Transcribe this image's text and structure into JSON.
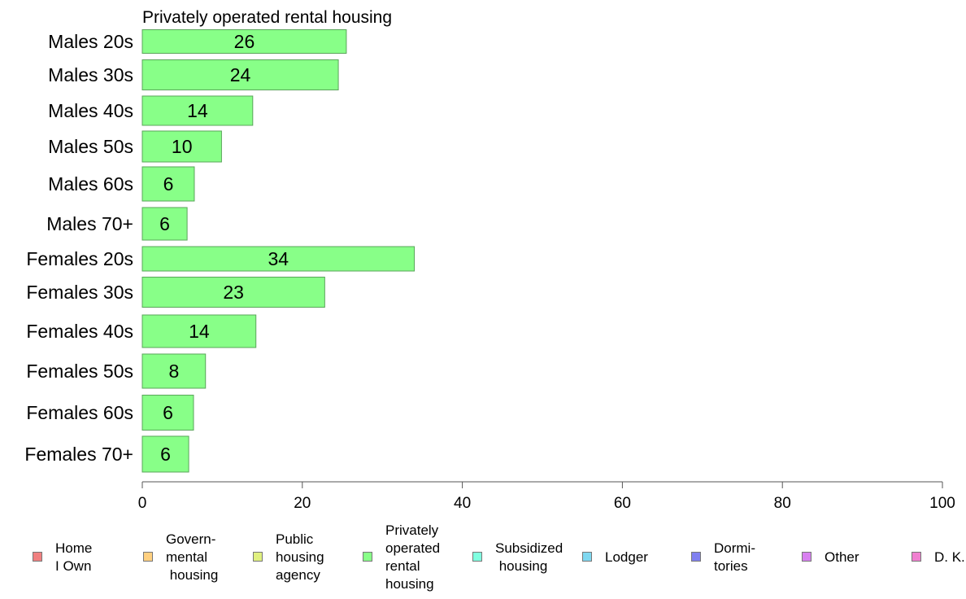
{
  "chart_data": {
    "type": "bar",
    "orientation": "horizontal",
    "title": "Privately operated rental housing",
    "categories": [
      "Males 20s",
      "Males 30s",
      "Males 40s",
      "Males 50s",
      "Males 60s",
      "Males 70+",
      "Females 20s",
      "Females 30s",
      "Females 40s",
      "Females 50s",
      "Females 60s",
      "Females 70+"
    ],
    "values": [
      25.5,
      24.5,
      13.8,
      9.9,
      6.5,
      5.6,
      34.0,
      22.8,
      14.2,
      7.9,
      6.4,
      5.8
    ],
    "value_labels": [
      "26",
      "24",
      "14",
      "10",
      "6",
      "6",
      "34",
      "23",
      "14",
      "8",
      "6",
      "6"
    ],
    "xlim": [
      0,
      100
    ],
    "xticks": [
      "0",
      "20",
      "40",
      "60",
      "80",
      "100"
    ],
    "xlabel": "",
    "ylabel": "",
    "grid": false,
    "bar_color": "#88ff88",
    "legend_position": "bottom",
    "legend": [
      {
        "label": "Home\nI Own",
        "color": "#f08080"
      },
      {
        "label": "Govern-\nmental\n housing",
        "color": "#ffd080"
      },
      {
        "label": "Public\nhousing\nagency",
        "color": "#e0f080"
      },
      {
        "label": "Privately\noperated\nrental\nhousing",
        "color": "#88ff88"
      },
      {
        "label": "Subsidized\n housing",
        "color": "#80ffe0"
      },
      {
        "label": "Lodger",
        "color": "#80d8f0"
      },
      {
        "label": "Dormi-\ntories",
        "color": "#8080f0"
      },
      {
        "label": "Other",
        "color": "#d880f0"
      },
      {
        "label": "D. K.",
        "color": "#f080d0"
      }
    ]
  }
}
